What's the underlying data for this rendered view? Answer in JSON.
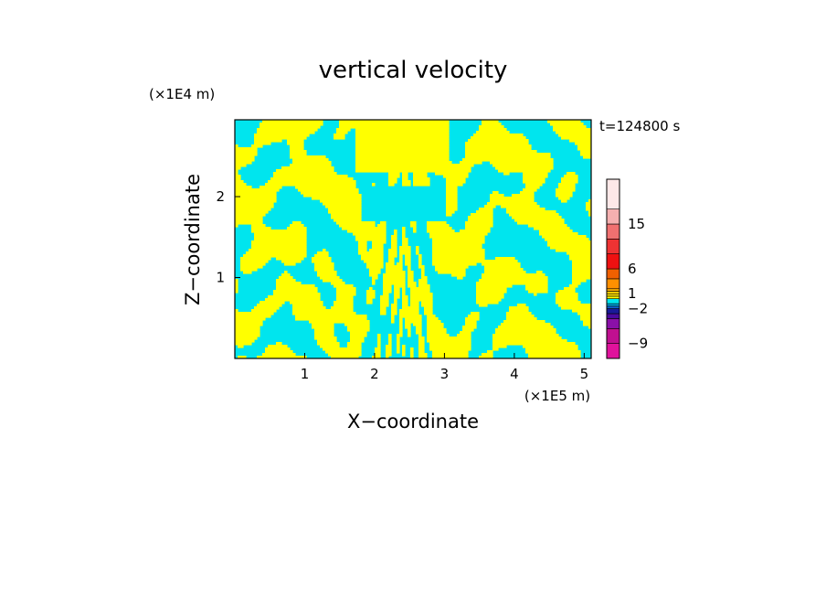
{
  "chart_data": {
    "type": "heatmap",
    "title": "vertical velocity",
    "xlabel": "X−coordinate",
    "ylabel": "Z−coordinate",
    "x_multiplier": "(×1E5 m)",
    "y_multiplier": "(×1E4 m)",
    "time_label": "t=124800 s",
    "xlim": [
      0,
      5.1
    ],
    "ylim": [
      0,
      2.95
    ],
    "x_ticks": [
      1,
      2,
      3,
      4,
      5
    ],
    "y_ticks": [
      1,
      2
    ],
    "x_tick_labels": [
      "1",
      "2",
      "3",
      "4",
      "5"
    ],
    "y_tick_labels": [
      "1",
      "2"
    ],
    "field_colors": {
      "positive": "#ffff00",
      "negative": "#00e5ee"
    },
    "colorbar": {
      "range": [
        -12,
        24
      ],
      "levels": [
        {
          "lo": -12,
          "hi": -9,
          "color": "#e0129c"
        },
        {
          "lo": -9,
          "hi": -6,
          "color": "#c01090"
        },
        {
          "lo": -6,
          "hi": -4,
          "color": "#8a10a8"
        },
        {
          "lo": -4,
          "hi": -3,
          "color": "#4a0aa0"
        },
        {
          "lo": -3,
          "hi": -2,
          "color": "#1a1a9a"
        },
        {
          "lo": -2,
          "hi": -1.5,
          "color": "#1060d0"
        },
        {
          "lo": -1.5,
          "hi": -1,
          "color": "#00a8e0"
        },
        {
          "lo": -1,
          "hi": 0,
          "color": "#00e5ee"
        },
        {
          "lo": 0,
          "hi": 0.5,
          "color": "#ffff00"
        },
        {
          "lo": 0.5,
          "hi": 1,
          "color": "#ffe000"
        },
        {
          "lo": 1,
          "hi": 1.5,
          "color": "#ffd000"
        },
        {
          "lo": 1.5,
          "hi": 2,
          "color": "#ffb000"
        },
        {
          "lo": 2,
          "hi": 4,
          "color": "#ff9000"
        },
        {
          "lo": 4,
          "hi": 6,
          "color": "#f06000"
        },
        {
          "lo": 6,
          "hi": 9,
          "color": "#ee1111"
        },
        {
          "lo": 9,
          "hi": 12,
          "color": "#ee3333"
        },
        {
          "lo": 12,
          "hi": 15,
          "color": "#f07070"
        },
        {
          "lo": 15,
          "hi": 18,
          "color": "#f5b0b0"
        },
        {
          "lo": 18,
          "hi": 24,
          "color": "#fde8e8"
        }
      ],
      "tick_values": [
        15,
        6,
        1,
        -2,
        -9
      ],
      "tick_labels": [
        "15",
        "6",
        "1",
        "−2",
        "−9"
      ]
    }
  }
}
